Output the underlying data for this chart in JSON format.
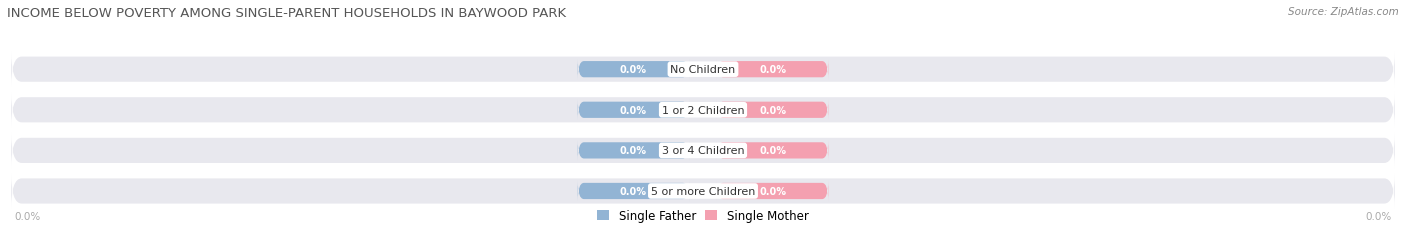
{
  "title": "INCOME BELOW POVERTY AMONG SINGLE-PARENT HOUSEHOLDS IN BAYWOOD PARK",
  "source": "Source: ZipAtlas.com",
  "categories": [
    "No Children",
    "1 or 2 Children",
    "3 or 4 Children",
    "5 or more Children"
  ],
  "father_values": [
    0.0,
    0.0,
    0.0,
    0.0
  ],
  "mother_values": [
    0.0,
    0.0,
    0.0,
    0.0
  ],
  "father_color": "#92b4d4",
  "mother_color": "#f4a0b0",
  "bar_bg_color": "#e8e8ee",
  "background_color": "#ffffff",
  "title_color": "#555555",
  "axis_label_color": "#aaaaaa",
  "legend_father": "Single Father",
  "legend_mother": "Single Mother",
  "figsize": [
    14.06,
    2.32
  ],
  "dpi": 100
}
